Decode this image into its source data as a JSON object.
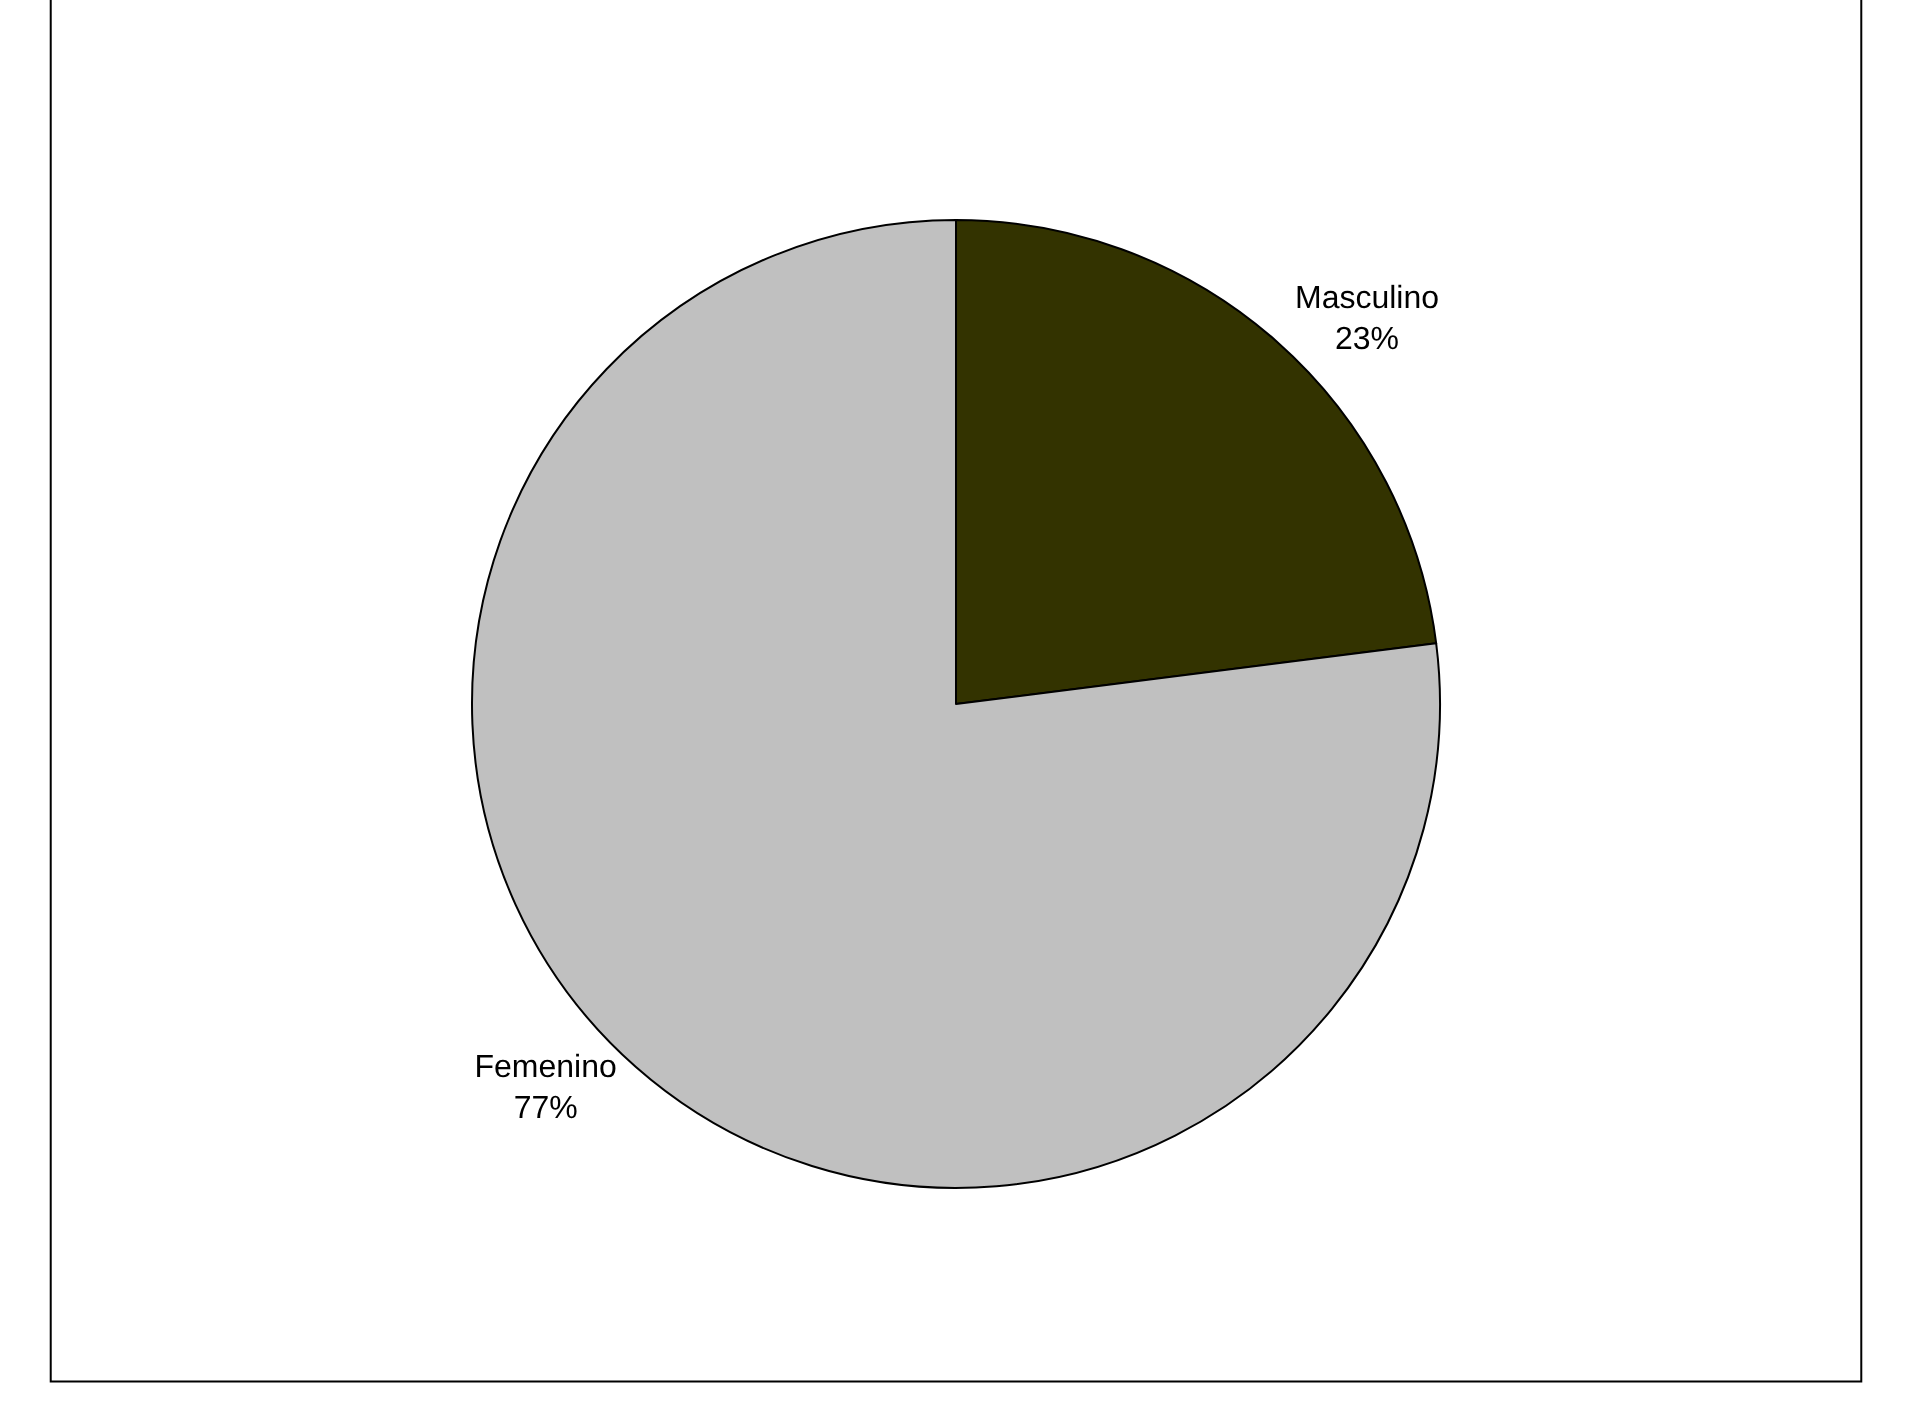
{
  "chart_data": {
    "type": "pie",
    "categories": [
      "Masculino",
      "Femenino"
    ],
    "values": [
      23,
      77
    ],
    "value_labels": [
      "23%",
      "77%"
    ],
    "colors": [
      "#333300",
      "#c0c0c0"
    ],
    "legend": false
  }
}
